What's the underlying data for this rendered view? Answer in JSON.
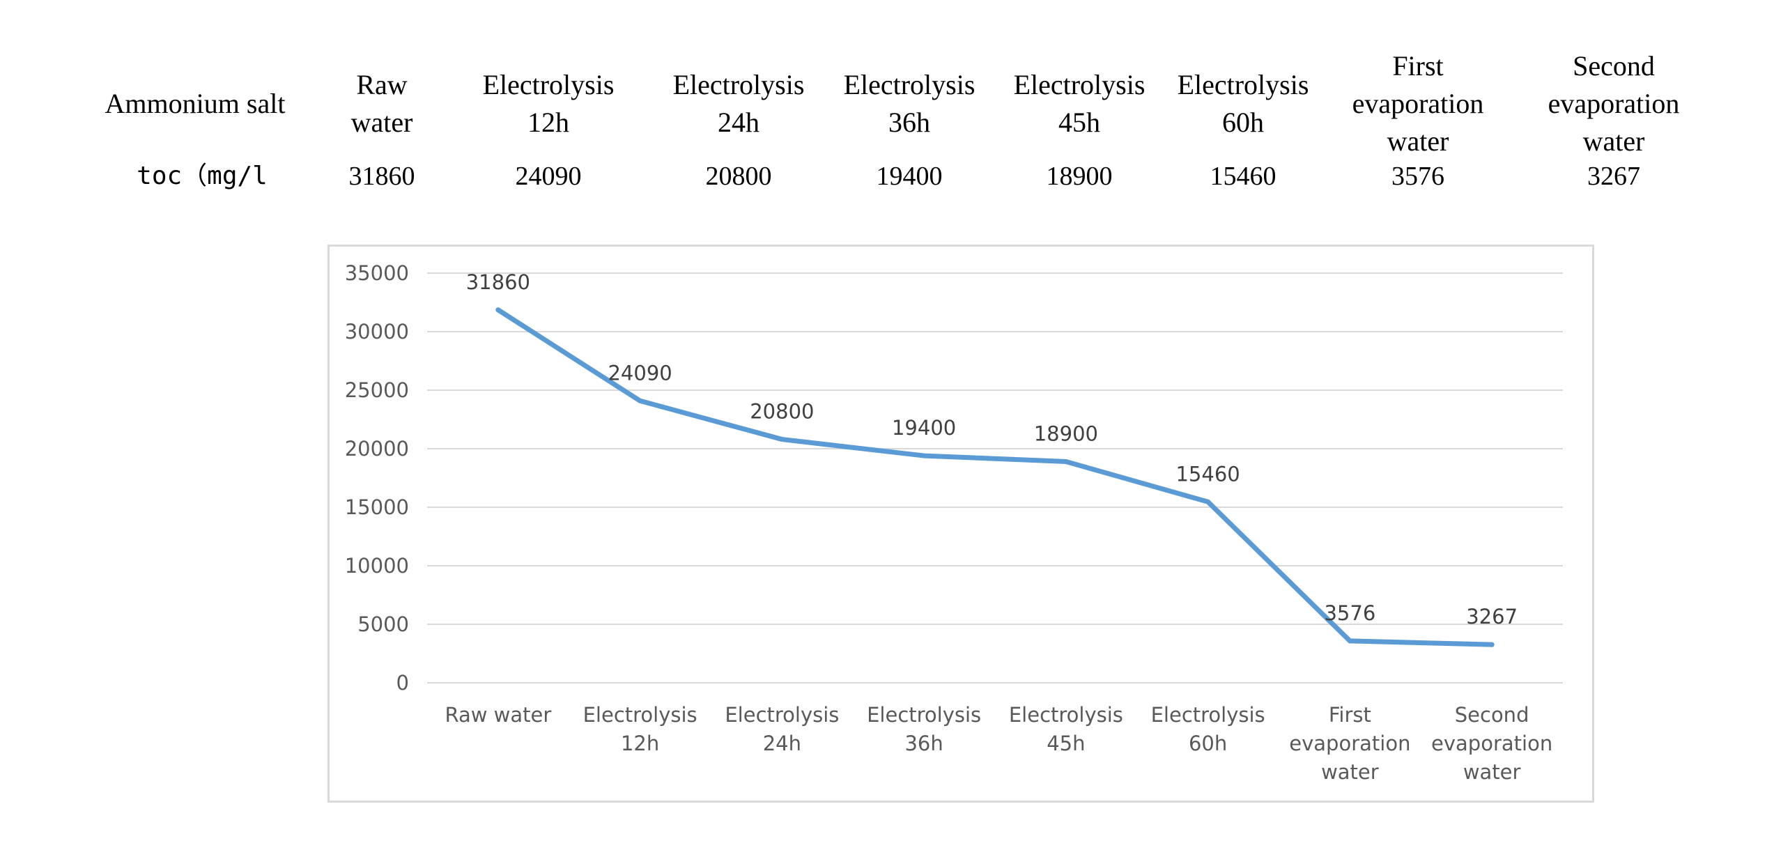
{
  "table": {
    "row_header": "Ammonium salt",
    "columns": [
      "Raw\nwater",
      "Electrolysis\n12h",
      "Electrolysis\n24h",
      "Electrolysis\n36h",
      "Electrolysis\n45h",
      "Electrolysis\n60h",
      "First\nevaporation\nwater",
      "Second\nevaporation\nwater"
    ],
    "value_row_label": "toc（mg/l",
    "values": [
      "31860",
      "24090",
      "20800",
      "19400",
      "18900",
      "15460",
      "3576",
      "3267"
    ]
  },
  "chart_data": {
    "type": "line",
    "title": "",
    "xlabel": "",
    "ylabel": "",
    "categories": [
      "Raw water",
      "Electrolysis\n12h",
      "Electrolysis\n24h",
      "Electrolysis\n36h",
      "Electrolysis\n45h",
      "Electrolysis\n60h",
      "First\nevaporation\nwater",
      "Second\nevaporation\nwater"
    ],
    "series": [
      {
        "values": [
          31860,
          24090,
          20800,
          19400,
          18900,
          15460,
          3576,
          3267
        ],
        "color": "#5b9bd5"
      }
    ],
    "data_labels": [
      "31860",
      "24090",
      "20800",
      "19400",
      "18900",
      "15460",
      "3576",
      "3267"
    ],
    "yticks": [
      "0",
      "5000",
      "10000",
      "15000",
      "20000",
      "25000",
      "30000",
      "35000"
    ],
    "ylim": [
      0,
      35000
    ],
    "grid": true,
    "legend": "none"
  }
}
